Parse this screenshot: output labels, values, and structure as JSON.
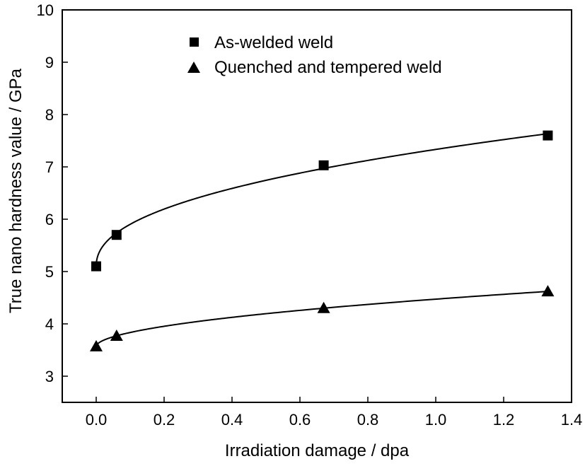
{
  "chart_data": {
    "type": "scatter",
    "title": "",
    "xlabel": "Irradiation damage / dpa",
    "ylabel": "True nano hardness value / GPa",
    "xlim": [
      -0.1,
      1.4
    ],
    "ylim": [
      2.5,
      10
    ],
    "x_ticks": [
      "0.0",
      "0.2",
      "0.4",
      "0.6",
      "0.8",
      "1.0",
      "1.2",
      "1.4"
    ],
    "y_ticks": [
      "3",
      "4",
      "5",
      "6",
      "7",
      "8",
      "9",
      "10"
    ],
    "grid": false,
    "legend_position": "top-center",
    "series": [
      {
        "name": "As-welded weld",
        "marker": "square",
        "color": "#000000",
        "x": [
          0.0,
          0.06,
          0.67,
          1.33
        ],
        "y": [
          5.1,
          5.7,
          7.03,
          7.6
        ],
        "fit_curve": true
      },
      {
        "name": "Quenched and tempered weld",
        "marker": "triangle",
        "color": "#000000",
        "x": [
          0.0,
          0.06,
          0.67,
          1.33
        ],
        "y": [
          3.57,
          3.77,
          4.3,
          4.62
        ],
        "fit_curve": true
      }
    ]
  }
}
